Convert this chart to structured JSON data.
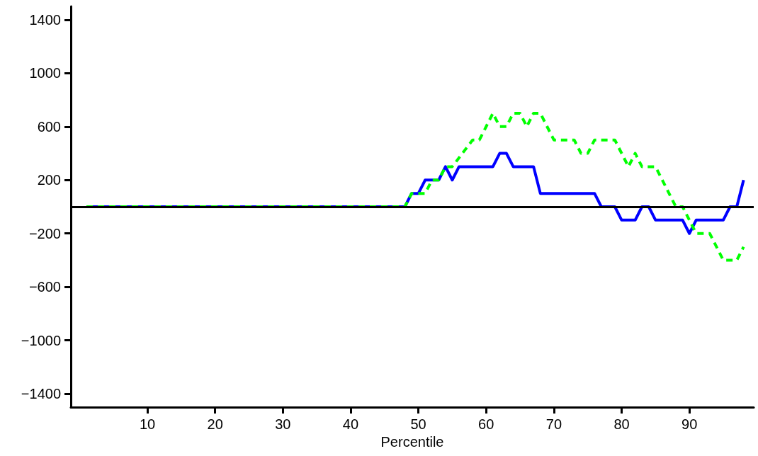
{
  "chart_data": {
    "type": "line",
    "xlabel": "Percentile",
    "xlim": [
      -1.3,
      99.5
    ],
    "xticks": [
      10,
      20,
      30,
      40,
      50,
      60,
      70,
      80,
      90
    ],
    "ylim": [
      -1500,
      1500
    ],
    "yticks": [
      {
        "value": -1400,
        "label": "−1400"
      },
      {
        "value": -1000,
        "label": "−1000"
      },
      {
        "value": -600,
        "label": "−600"
      },
      {
        "value": -200,
        "label": "−200"
      },
      200,
      600,
      1000,
      1400
    ],
    "grid": false,
    "marker": "none",
    "ref_lines": [
      {
        "axis": "y",
        "value": 0,
        "color": "#000000",
        "line_style": "solid"
      }
    ],
    "series": [
      {
        "color": "#0000ff",
        "line_style": "solid",
        "x": [
          1,
          48,
          49,
          50,
          51,
          53,
          54,
          55,
          56,
          61,
          62,
          63,
          64,
          67,
          68,
          76,
          77,
          79,
          80,
          82,
          83,
          84,
          85,
          89,
          90,
          91,
          95,
          96,
          97,
          98
        ],
        "values": [
          0,
          0,
          100,
          100,
          200,
          200,
          300,
          200,
          300,
          300,
          400,
          400,
          300,
          300,
          100,
          100,
          0,
          0,
          -100,
          -100,
          0,
          0,
          -100,
          -100,
          -200,
          -100,
          -100,
          0,
          0,
          200
        ]
      },
      {
        "color": "#00ff00",
        "line_style": "dashed",
        "x": [
          1,
          48,
          49,
          51,
          52,
          53,
          54,
          55,
          58,
          59,
          61,
          62,
          63,
          64,
          65,
          66,
          67,
          68,
          70,
          73,
          74,
          75,
          76,
          79,
          81,
          82,
          83,
          85,
          88,
          89,
          91,
          93,
          95,
          97,
          98
        ],
        "values": [
          0,
          0,
          100,
          100,
          200,
          200,
          300,
          300,
          500,
          500,
          700,
          600,
          600,
          700,
          700,
          600,
          700,
          700,
          500,
          500,
          400,
          400,
          500,
          500,
          300,
          400,
          300,
          300,
          0,
          0,
          -200,
          -200,
          -400,
          -400,
          -300
        ]
      }
    ]
  }
}
